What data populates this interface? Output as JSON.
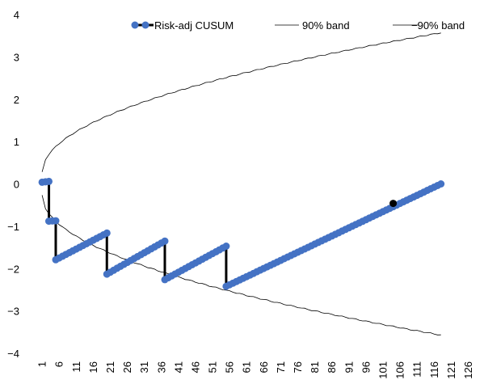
{
  "chart_data": {
    "type": "line",
    "title": "",
    "xlabel": "",
    "ylabel": "",
    "ylim": [
      -4,
      4
    ],
    "yticks": [
      "4",
      "3",
      "2",
      "1",
      "0",
      "−1",
      "−2",
      "−3",
      "−4"
    ],
    "xticks": [
      "1",
      "6",
      "11",
      "16",
      "21",
      "26",
      "31",
      "36",
      "41",
      "46",
      "51",
      "56",
      "61",
      "66",
      "71",
      "76",
      "81",
      "86",
      "91",
      "96",
      "101",
      "106",
      "111",
      "116",
      "121",
      "126"
    ],
    "x_categories": 128,
    "legend_position": "top-right",
    "colors": {
      "cusum": "#4472C4",
      "jump": "#000000",
      "band": "#000000",
      "highlight": "#000000"
    },
    "series": [
      {
        "name": "Risk-adj CUSUM",
        "marker": "circle",
        "segments": [
          {
            "x_start": 1,
            "x_end": 3,
            "y_start": 0.04,
            "y_end": 0.06
          },
          {
            "x_start": 3,
            "x_end": 3,
            "y_start": 0.06,
            "y_end": -0.88
          },
          {
            "x_start": 3,
            "x_end": 5,
            "y_start": -0.88,
            "y_end": -0.87
          },
          {
            "x_start": 5,
            "x_end": 5,
            "y_start": -0.87,
            "y_end": -1.79
          },
          {
            "x_start": 5,
            "x_end": 20,
            "y_start": -1.79,
            "y_end": -1.16
          },
          {
            "x_start": 20,
            "x_end": 20,
            "y_start": -1.16,
            "y_end": -2.13
          },
          {
            "x_start": 20,
            "x_end": 37,
            "y_start": -2.13,
            "y_end": -1.35
          },
          {
            "x_start": 37,
            "x_end": 37,
            "y_start": -1.35,
            "y_end": -2.26
          },
          {
            "x_start": 37,
            "x_end": 55,
            "y_start": -2.26,
            "y_end": -1.47
          },
          {
            "x_start": 55,
            "x_end": 55,
            "y_start": -1.47,
            "y_end": -2.42
          },
          {
            "x_start": 55,
            "x_end": 118,
            "y_start": -2.42,
            "y_end": 0.0
          }
        ],
        "highlight_point": {
          "x": 104,
          "y": -0.46
        }
      },
      {
        "name": "90% band",
        "style": "thin-line",
        "x_start": 1,
        "x_end": 118,
        "y_start": 0.27,
        "y_end": 3.57
      },
      {
        "name": "−90% band",
        "style": "thin-line",
        "x_start": 1,
        "x_end": 118,
        "y_start": -0.27,
        "y_end": -3.57
      }
    ]
  }
}
